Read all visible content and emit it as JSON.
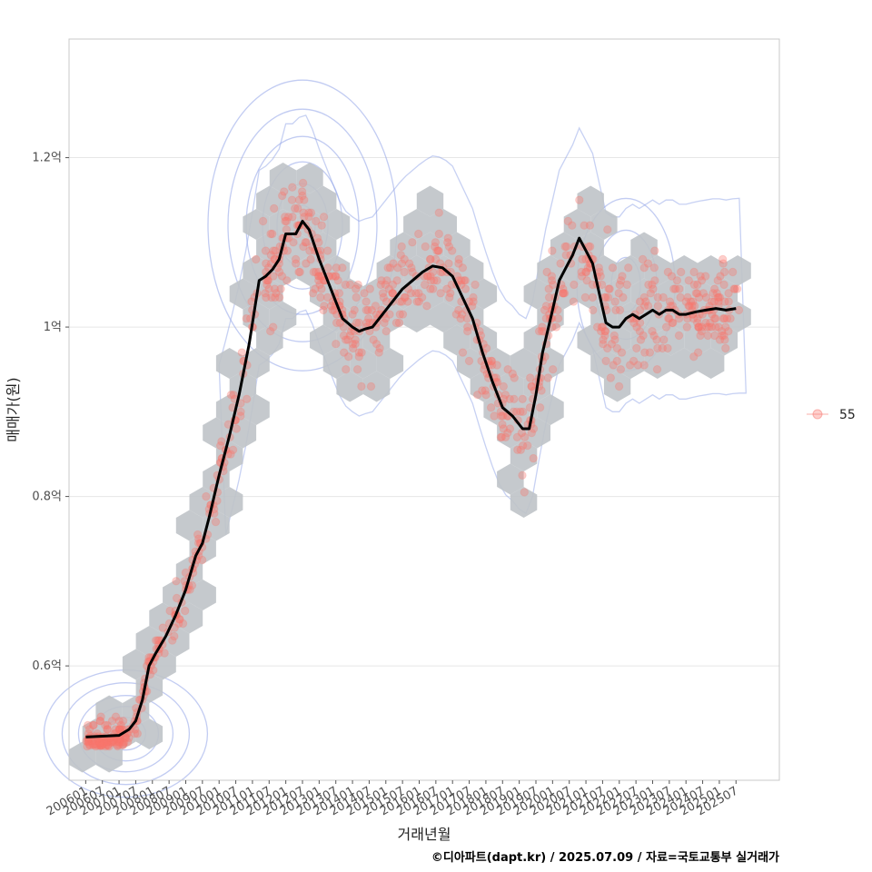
{
  "chart_data": {
    "type": "scatter",
    "xlabel": "거래년월",
    "ylabel": "매매가(원)",
    "caption": "©디아파트(dapt.kr) / 2025.07.09 / 자료=국토교통부 실거래가",
    "y_unit": "억원",
    "ylim": [
      0.465,
      1.34
    ],
    "yticks": [
      {
        "value": 0.6,
        "label": "0.6억"
      },
      {
        "value": 0.8,
        "label": "0.8억"
      },
      {
        "value": 1.0,
        "label": "1억"
      },
      {
        "value": 1.2,
        "label": "1.2억"
      }
    ],
    "xlim": [
      2005.5,
      2026.8
    ],
    "xticks": [
      "200601",
      "200607",
      "200701",
      "200707",
      "200801",
      "200807",
      "200901",
      "200907",
      "201001",
      "201007",
      "201101",
      "201107",
      "201201",
      "201207",
      "201301",
      "201307",
      "201401",
      "201407",
      "201501",
      "201507",
      "201601",
      "201607",
      "201701",
      "201707",
      "201801",
      "201807",
      "201901",
      "201907",
      "202001",
      "202007",
      "202101",
      "202107",
      "202201",
      "202207",
      "202301",
      "202307",
      "202401",
      "202407",
      "202501",
      "202507"
    ],
    "legend": [
      {
        "label": "55",
        "color": "#F8766D"
      }
    ],
    "colors": {
      "points": "#F8766D",
      "hex": "#BFC3C8",
      "trend": "#000000",
      "density": "#8FA3E8"
    },
    "series": [
      {
        "name": "moving_average",
        "x": [
          2006.0,
          2006.5,
          2007.0,
          2007.3,
          2007.5,
          2007.7,
          2007.9,
          2008.1,
          2008.4,
          2008.7,
          2009.0,
          2009.3,
          2009.5,
          2009.7,
          2010.0,
          2010.3,
          2010.6,
          2010.9,
          2011.2,
          2011.4,
          2011.6,
          2011.8,
          2012.0,
          2012.3,
          2012.5,
          2012.7,
          2013.0,
          2013.3,
          2013.5,
          2013.7,
          2014.0,
          2014.2,
          2014.4,
          2014.6,
          2014.9,
          2015.2,
          2015.5,
          2015.8,
          2016.1,
          2016.4,
          2016.7,
          2017.0,
          2017.3,
          2017.6,
          2017.9,
          2018.2,
          2018.5,
          2018.8,
          2019.1,
          2019.3,
          2019.5,
          2019.7,
          2020.0,
          2020.2,
          2020.4,
          2020.6,
          2020.8,
          2021.0,
          2021.2,
          2021.4,
          2021.6,
          2021.8,
          2022.0,
          2022.2,
          2022.4,
          2022.6,
          2022.8,
          2023.0,
          2023.2,
          2023.4,
          2023.6,
          2023.8,
          2024.0,
          2024.3,
          2024.6,
          2024.9,
          2025.2,
          2025.5
        ],
        "y": [
          0.516,
          0.517,
          0.518,
          0.525,
          0.535,
          0.56,
          0.6,
          0.615,
          0.635,
          0.66,
          0.69,
          0.73,
          0.745,
          0.775,
          0.825,
          0.87,
          0.92,
          0.98,
          1.055,
          1.06,
          1.068,
          1.08,
          1.11,
          1.11,
          1.125,
          1.115,
          1.08,
          1.05,
          1.03,
          1.01,
          1.0,
          0.995,
          0.998,
          1.0,
          1.015,
          1.03,
          1.045,
          1.055,
          1.065,
          1.072,
          1.07,
          1.06,
          1.035,
          1.01,
          0.97,
          0.935,
          0.905,
          0.895,
          0.88,
          0.88,
          0.92,
          0.97,
          1.02,
          1.055,
          1.07,
          1.085,
          1.105,
          1.09,
          1.075,
          1.04,
          1.005,
          1.0,
          1.0,
          1.01,
          1.015,
          1.01,
          1.015,
          1.02,
          1.015,
          1.02,
          1.02,
          1.015,
          1.015,
          1.018,
          1.02,
          1.022,
          1.02,
          1.022
        ]
      }
    ]
  }
}
